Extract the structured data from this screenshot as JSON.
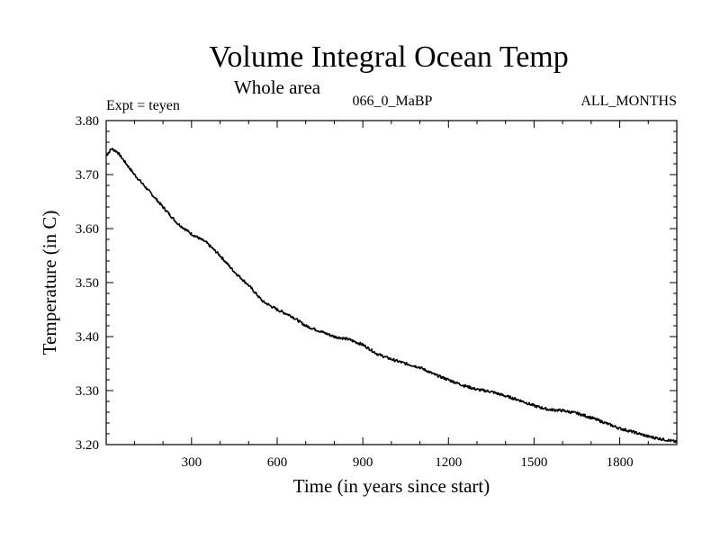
{
  "chart_data": {
    "type": "line",
    "title": "Volume Integral Ocean Temp",
    "subtitle": "Whole area",
    "experiment": "Expt = teyen",
    "run_label": "066_0_MaBP",
    "months_label": "ALL_MONTHS",
    "xlabel": "Time (in years since start)",
    "ylabel": "Temperature (in C)",
    "xlim": [
      1,
      2000
    ],
    "ylim": [
      3.2,
      3.8
    ],
    "xticks": [
      300,
      600,
      900,
      1200,
      1500,
      1800
    ],
    "xtick_labels": [
      "300",
      "600",
      "900",
      "1200",
      "1500",
      "1800"
    ],
    "yticks": [
      3.2,
      3.3,
      3.4,
      3.5,
      3.6,
      3.7,
      3.8
    ],
    "ytick_labels": [
      "3.20",
      "3.30",
      "3.40",
      "3.50",
      "3.60",
      "3.70",
      "3.80"
    ],
    "grid": false,
    "series": [
      {
        "name": "teyen",
        "x": [
          1,
          20,
          40,
          60,
          100,
          150,
          200,
          250,
          300,
          350,
          400,
          450,
          500,
          550,
          600,
          650,
          700,
          750,
          800,
          850,
          900,
          950,
          1000,
          1050,
          1100,
          1150,
          1200,
          1250,
          1300,
          1350,
          1400,
          1450,
          1500,
          1550,
          1600,
          1650,
          1700,
          1750,
          1800,
          1850,
          1900,
          1950,
          2000
        ],
        "y": [
          3.735,
          3.748,
          3.742,
          3.728,
          3.7,
          3.67,
          3.64,
          3.61,
          3.59,
          3.575,
          3.55,
          3.52,
          3.495,
          3.465,
          3.45,
          3.438,
          3.42,
          3.41,
          3.4,
          3.395,
          3.385,
          3.368,
          3.358,
          3.35,
          3.343,
          3.33,
          3.32,
          3.31,
          3.302,
          3.298,
          3.29,
          3.282,
          3.272,
          3.265,
          3.263,
          3.258,
          3.25,
          3.24,
          3.23,
          3.223,
          3.215,
          3.21,
          3.205
        ]
      }
    ]
  }
}
